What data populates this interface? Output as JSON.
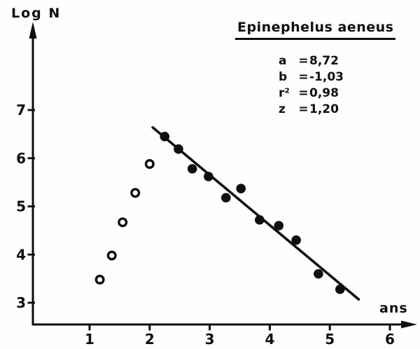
{
  "page": {
    "paper": "#fefefe",
    "ink": "#0f0f0f"
  },
  "chart_data": {
    "type": "scatter",
    "title": "Epinephelus aeneus",
    "ylabel": "Log N",
    "xlabel": "ans",
    "x_ticks": [
      1,
      2,
      3,
      4,
      5,
      6
    ],
    "y_ticks": [
      3,
      4,
      5,
      6,
      7
    ],
    "xlim": [
      0.05,
      6.45
    ],
    "ylim": [
      2.55,
      8.85
    ],
    "grid": false,
    "legend": "none",
    "parameters": [
      {
        "label": "a",
        "eq": "=",
        "value": "8,72"
      },
      {
        "label": "b",
        "eq": "=",
        "value": "-1,03"
      },
      {
        "label": "r²",
        "eq": "=",
        "value": "0,98"
      },
      {
        "label": "z",
        "eq": "=",
        "value": "1,20"
      }
    ],
    "series": [
      {
        "name": "ascending-limb-open-circles",
        "marker": "open-circle",
        "points": [
          [
            1.17,
            3.48
          ],
          [
            1.37,
            3.98
          ],
          [
            1.55,
            4.67
          ],
          [
            1.76,
            5.28
          ],
          [
            2.0,
            5.88
          ]
        ]
      },
      {
        "name": "descending-limb-filled-circles",
        "marker": "filled-circle",
        "points": [
          [
            2.25,
            6.45
          ],
          [
            2.48,
            6.19
          ],
          [
            2.71,
            5.78
          ],
          [
            2.98,
            5.62
          ],
          [
            3.27,
            5.18
          ],
          [
            3.52,
            5.37
          ],
          [
            3.83,
            4.72
          ],
          [
            4.15,
            4.6
          ],
          [
            4.44,
            4.3
          ],
          [
            4.81,
            3.6
          ],
          [
            5.17,
            3.28
          ]
        ]
      }
    ],
    "regression_line": {
      "x1": 2.05,
      "y1": 6.64,
      "x2": 5.48,
      "y2": 3.07
    }
  }
}
